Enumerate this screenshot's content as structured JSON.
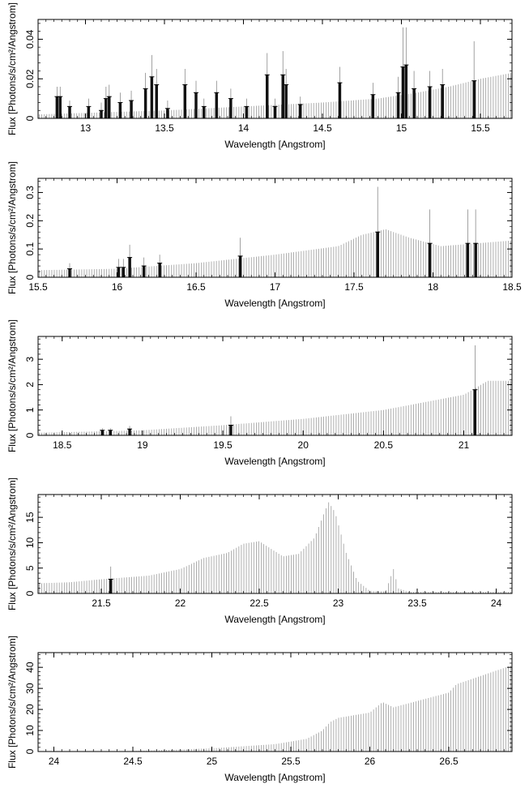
{
  "chart_data": [
    {
      "type": "bar",
      "xlabel": "Wavelength [Angstrom]",
      "ylabel": "Flux [Photons/s/cm²/Angstrom]",
      "xlim": [
        12.7,
        15.7
      ],
      "ylim": [
        0,
        0.05
      ],
      "xticks": [
        13,
        13.5,
        14,
        14.5,
        15,
        15.5
      ],
      "yticks": [
        0,
        0.02,
        0.04
      ],
      "xtick_labels": [
        "13",
        "13.5",
        "14",
        "14.5",
        "15",
        "15.5"
      ],
      "ytick_labels": [
        "0",
        "0.02",
        "0.04"
      ],
      "grid": false,
      "continuum": [
        [
          12.7,
          0.002
        ],
        [
          13.5,
          0.004
        ],
        [
          14.0,
          0.006
        ],
        [
          14.5,
          0.008
        ],
        [
          14.85,
          0.01
        ],
        [
          15.1,
          0.013
        ],
        [
          15.3,
          0.016
        ],
        [
          15.5,
          0.02
        ],
        [
          15.7,
          0.023
        ]
      ],
      "lines": [
        {
          "x": 12.82,
          "y": 0.011,
          "err": 0.005
        },
        {
          "x": 12.84,
          "y": 0.011,
          "err": 0.005
        },
        {
          "x": 12.9,
          "y": 0.006,
          "err": 0.003
        },
        {
          "x": 13.02,
          "y": 0.006,
          "err": 0.004
        },
        {
          "x": 13.1,
          "y": 0.004,
          "err": 0.004
        },
        {
          "x": 13.13,
          "y": 0.01,
          "err": 0.006
        },
        {
          "x": 13.15,
          "y": 0.011,
          "err": 0.006
        },
        {
          "x": 13.22,
          "y": 0.008,
          "err": 0.005
        },
        {
          "x": 13.29,
          "y": 0.009,
          "err": 0.005
        },
        {
          "x": 13.38,
          "y": 0.015,
          "err": 0.008
        },
        {
          "x": 13.42,
          "y": 0.021,
          "err": 0.011
        },
        {
          "x": 13.45,
          "y": 0.017,
          "err": 0.008
        },
        {
          "x": 13.52,
          "y": 0.005,
          "err": 0.004
        },
        {
          "x": 13.63,
          "y": 0.017,
          "err": 0.008
        },
        {
          "x": 13.7,
          "y": 0.013,
          "err": 0.006
        },
        {
          "x": 13.75,
          "y": 0.006,
          "err": 0.004
        },
        {
          "x": 13.83,
          "y": 0.013,
          "err": 0.006
        },
        {
          "x": 13.92,
          "y": 0.01,
          "err": 0.005
        },
        {
          "x": 14.02,
          "y": 0.006,
          "err": 0.004
        },
        {
          "x": 14.15,
          "y": 0.022,
          "err": 0.011
        },
        {
          "x": 14.2,
          "y": 0.006,
          "err": 0.004
        },
        {
          "x": 14.25,
          "y": 0.022,
          "err": 0.012
        },
        {
          "x": 14.27,
          "y": 0.017,
          "err": 0.008
        },
        {
          "x": 14.36,
          "y": 0.007,
          "err": 0.004
        },
        {
          "x": 14.61,
          "y": 0.018,
          "err": 0.008
        },
        {
          "x": 14.82,
          "y": 0.012,
          "err": 0.006
        },
        {
          "x": 14.98,
          "y": 0.013,
          "err": 0.008
        },
        {
          "x": 15.01,
          "y": 0.026,
          "err": 0.02
        },
        {
          "x": 15.03,
          "y": 0.027,
          "err": 0.019
        },
        {
          "x": 15.08,
          "y": 0.015,
          "err": 0.009
        },
        {
          "x": 15.18,
          "y": 0.016,
          "err": 0.008
        },
        {
          "x": 15.26,
          "y": 0.017,
          "err": 0.008
        },
        {
          "x": 15.46,
          "y": 0.019,
          "err": 0.02
        }
      ]
    },
    {
      "type": "bar",
      "xlabel": "Wavelength [Angstrom]",
      "ylabel": "Flux [Photons/s/cm²/Angstrom]",
      "xlim": [
        15.5,
        18.5
      ],
      "ylim": [
        0,
        0.35
      ],
      "xticks": [
        15.5,
        16,
        16.5,
        17,
        17.5,
        18,
        18.5
      ],
      "yticks": [
        0,
        0.1,
        0.2,
        0.3
      ],
      "xtick_labels": [
        "15.5",
        "16",
        "16.5",
        "17",
        "17.5",
        "18",
        "18.5"
      ],
      "ytick_labels": [
        "0",
        "0.1",
        "0.2",
        "0.3"
      ],
      "grid": false,
      "continuum": [
        [
          15.5,
          0.025
        ],
        [
          16.0,
          0.03
        ],
        [
          16.5,
          0.05
        ],
        [
          17.0,
          0.08
        ],
        [
          17.4,
          0.11
        ],
        [
          17.55,
          0.15
        ],
        [
          17.7,
          0.17
        ],
        [
          17.85,
          0.14
        ],
        [
          18.05,
          0.11
        ],
        [
          18.5,
          0.13
        ]
      ],
      "lines": [
        {
          "x": 15.7,
          "y": 0.03,
          "err": 0.02
        },
        {
          "x": 16.01,
          "y": 0.035,
          "err": 0.03
        },
        {
          "x": 16.04,
          "y": 0.035,
          "err": 0.03
        },
        {
          "x": 16.08,
          "y": 0.07,
          "err": 0.045
        },
        {
          "x": 16.17,
          "y": 0.04,
          "err": 0.03
        },
        {
          "x": 16.27,
          "y": 0.05,
          "err": 0.03
        },
        {
          "x": 16.78,
          "y": 0.075,
          "err": 0.065
        },
        {
          "x": 17.65,
          "y": 0.16,
          "err": 0.16
        },
        {
          "x": 17.98,
          "y": 0.12,
          "err": 0.12
        },
        {
          "x": 18.22,
          "y": 0.12,
          "err": 0.12
        },
        {
          "x": 18.27,
          "y": 0.12,
          "err": 0.12
        }
      ]
    },
    {
      "type": "bar",
      "xlabel": "Wavelength [Angstrom]",
      "ylabel": "Flux [Photons/s/cm²/Angstrom]",
      "xlim": [
        18.35,
        21.3
      ],
      "ylim": [
        0,
        3.9
      ],
      "xticks": [
        18.5,
        19,
        19.5,
        20,
        20.5,
        21
      ],
      "yticks": [
        0,
        1,
        2,
        3
      ],
      "xtick_labels": [
        "18.5",
        "19",
        "19.5",
        "20",
        "20.5",
        "21"
      ],
      "ytick_labels": [
        "0",
        "1",
        "2",
        "3"
      ],
      "grid": false,
      "continuum": [
        [
          18.35,
          0.1
        ],
        [
          19.0,
          0.2
        ],
        [
          19.5,
          0.4
        ],
        [
          20.0,
          0.65
        ],
        [
          20.5,
          1.0
        ],
        [
          21.0,
          1.6
        ],
        [
          21.15,
          2.15
        ],
        [
          21.3,
          2.15
        ]
      ],
      "lines": [
        {
          "x": 18.75,
          "y": 0.2,
          "err": 0.08
        },
        {
          "x": 18.8,
          "y": 0.2,
          "err": 0.08
        },
        {
          "x": 18.92,
          "y": 0.25,
          "err": 0.12
        },
        {
          "x": 19.55,
          "y": 0.4,
          "err": 0.35
        },
        {
          "x": 21.07,
          "y": 1.8,
          "err": 1.75
        }
      ]
    },
    {
      "type": "bar",
      "xlabel": "Wavelength [Angstrom]",
      "ylabel": "Flux [Photons/s/cm²/Angstrom]",
      "xlim": [
        21.1,
        24.1
      ],
      "ylim": [
        0,
        19.5
      ],
      "xticks": [
        21.5,
        22,
        22.5,
        23,
        23.5,
        24
      ],
      "yticks": [
        0,
        5,
        10,
        15
      ],
      "xtick_labels": [
        "21.5",
        "22",
        "22.5",
        "23",
        "23.5",
        "24"
      ],
      "ytick_labels": [
        "0",
        "5",
        "10",
        "15"
      ],
      "grid": false,
      "continuum": [
        [
          21.1,
          2.0
        ],
        [
          21.3,
          2.2
        ],
        [
          21.5,
          2.8
        ],
        [
          21.8,
          3.5
        ],
        [
          22.0,
          4.8
        ],
        [
          22.15,
          7.0
        ],
        [
          22.3,
          8.0
        ],
        [
          22.4,
          9.8
        ],
        [
          22.5,
          10.3
        ],
        [
          22.6,
          8.3
        ],
        [
          22.65,
          7.3
        ],
        [
          22.75,
          7.8
        ],
        [
          22.85,
          11.0
        ],
        [
          22.9,
          15.0
        ],
        [
          22.94,
          18.0
        ],
        [
          22.98,
          16.0
        ],
        [
          23.05,
          8.0
        ],
        [
          23.12,
          2.5
        ],
        [
          23.2,
          0.5
        ],
        [
          23.3,
          0.4
        ],
        [
          23.35,
          4.8
        ],
        [
          23.38,
          1.0
        ],
        [
          23.45,
          0.3
        ],
        [
          24.1,
          0.3
        ]
      ],
      "lines": [
        {
          "x": 21.56,
          "y": 2.8,
          "err": 2.5
        }
      ]
    },
    {
      "type": "bar",
      "xlabel": "Wavelength [Angstrom]",
      "ylabel": "Flux [Photons/s/cm²/Angstrom]",
      "xlim": [
        23.9,
        26.9
      ],
      "ylim": [
        0,
        47
      ],
      "xticks": [
        24,
        24.5,
        25,
        25.5,
        26,
        26.5
      ],
      "yticks": [
        0,
        10,
        20,
        30,
        40
      ],
      "xtick_labels": [
        "24",
        "24.5",
        "25",
        "25.5",
        "26",
        "26.5"
      ],
      "ytick_labels": [
        "0",
        "10",
        "20",
        "30",
        "40"
      ],
      "grid": false,
      "continuum": [
        [
          23.9,
          0.0
        ],
        [
          24.5,
          0.2
        ],
        [
          25.0,
          1.5
        ],
        [
          25.4,
          3.5
        ],
        [
          25.6,
          6.0
        ],
        [
          25.7,
          10.0
        ],
        [
          25.75,
          14.0
        ],
        [
          25.8,
          16.0
        ],
        [
          26.0,
          18.5
        ],
        [
          26.08,
          23.5
        ],
        [
          26.15,
          21.0
        ],
        [
          26.5,
          28.0
        ],
        [
          26.55,
          32.0
        ],
        [
          26.9,
          41.0
        ]
      ],
      "lines": []
    }
  ]
}
